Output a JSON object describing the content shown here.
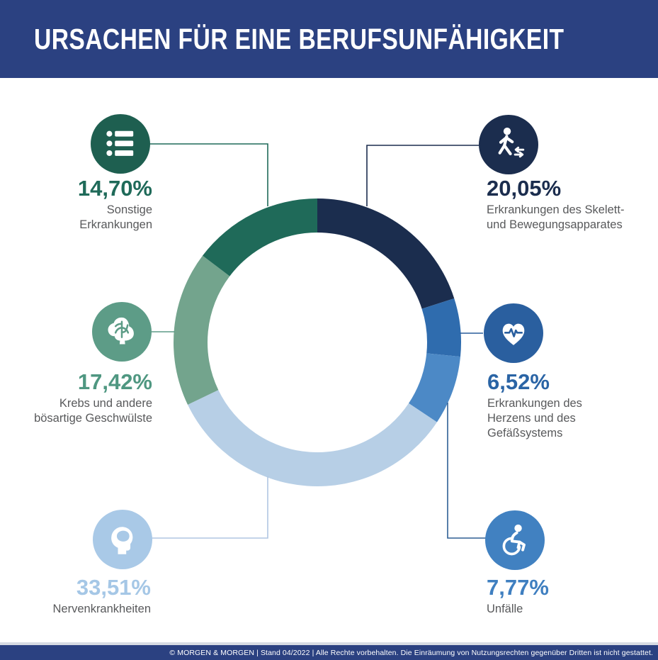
{
  "header": {
    "title": "URSACHEN FÜR EINE BERUFSUNFÄHIGKEIT",
    "bg_color": "#2b4181",
    "text_color": "#ffffff"
  },
  "chart_data": {
    "type": "pie",
    "donut": true,
    "title": "URSACHEN FÜR EINE BERUFSUNFÄHIGKEIT",
    "start_angle_deg": 0,
    "direction": "clockwise",
    "segments": [
      {
        "id": "skelett",
        "label": "Erkrankungen des Skelett- und Bewegungsapparates",
        "value": 20.05,
        "color": "#1b2d4e"
      },
      {
        "id": "herz",
        "label": "Erkrankungen des Herzens und des Gefäßsystems",
        "value": 6.52,
        "color": "#2f6cae"
      },
      {
        "id": "unfaelle",
        "label": "Unfälle",
        "value": 7.77,
        "color": "#4c89c6"
      },
      {
        "id": "nerven",
        "label": "Nervenkrankheiten",
        "value": 33.51,
        "color": "#b7cfe6"
      },
      {
        "id": "krebs",
        "label": "Krebs und andere bösartige Geschwülste",
        "value": 17.42,
        "color": "#73a48d"
      },
      {
        "id": "sonstige",
        "label": "Sonstige Erkrankungen",
        "value": 14.7,
        "color": "#1f6a59"
      }
    ]
  },
  "callouts": [
    {
      "id": "sonstige",
      "icon": "list-icon",
      "percent": "14,70%",
      "lines": [
        "Sonstige",
        "Erkrankungen"
      ],
      "color": "#1f6a59",
      "icon_color": "#1e5f50",
      "line_color": "#1f6a59"
    },
    {
      "id": "skelett",
      "icon": "walking-icon",
      "percent": "20,05%",
      "lines": [
        "Erkrankungen des Skelett-",
        "und Bewegungsapparates"
      ],
      "color": "#1b2d4e",
      "icon_color": "#1b2d4e",
      "line_color": "#1b2d4e"
    },
    {
      "id": "krebs",
      "icon": "brain-icon",
      "percent": "17,42%",
      "lines": [
        "Krebs und andere",
        "bösartige Geschwülste"
      ],
      "color": "#4f9781",
      "icon_color": "#5d9c87",
      "line_color": "#5d9c87"
    },
    {
      "id": "herz",
      "icon": "heart-icon",
      "percent": "6,52%",
      "lines": [
        "Erkrankungen des",
        "Herzens und des",
        "Gefäßsystems"
      ],
      "color": "#2a64a5",
      "icon_color": "#2a5f9f",
      "line_color": "#2a5d9b"
    },
    {
      "id": "nerven",
      "icon": "head-icon",
      "percent": "33,51%",
      "lines": [
        "Nervenkrankheiten"
      ],
      "color": "#a5c7e6",
      "icon_color": "#a9c9e7",
      "line_color": "#b0c6e2"
    },
    {
      "id": "unfaelle",
      "icon": "wheelchair-icon",
      "percent": "7,77%",
      "lines": [
        "Unfälle"
      ],
      "color": "#3f7fc0",
      "icon_color": "#4181c1",
      "line_color": "#2e5f94"
    }
  ],
  "footer": {
    "text": "© MORGEN & MORGEN  | Stand 04/2022 | Alle Rechte vorbehalten. Die Einräumung von Nutzungsrechten gegenüber Dritten ist nicht gestattet.",
    "bg_color": "#2b4181",
    "text_color": "#ffffff"
  }
}
